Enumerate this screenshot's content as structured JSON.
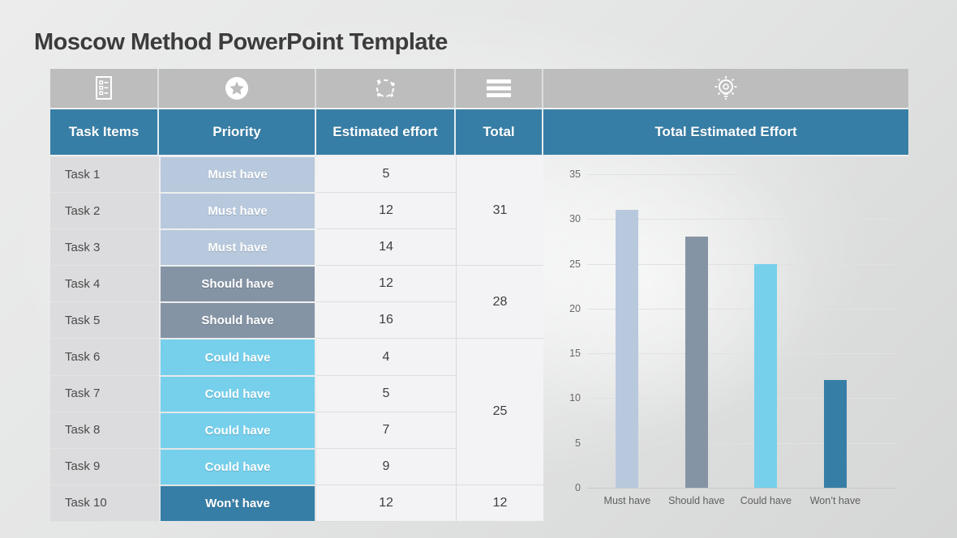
{
  "slide": {
    "title": "Moscow Method PowerPoint Template"
  },
  "table": {
    "columns": {
      "task": "Task Items",
      "priority": "Priority",
      "effort": "Estimated effort",
      "total": "Total"
    },
    "header_icons": [
      "task-list-icon",
      "star-icon",
      "sync-icon",
      "menu-icon",
      "bulb-icon"
    ],
    "rows": [
      {
        "task": "Task 1",
        "priority": "Must have",
        "effort": "5"
      },
      {
        "task": "Task 2",
        "priority": "Must have",
        "effort": "12"
      },
      {
        "task": "Task 3",
        "priority": "Must have",
        "effort": "14"
      },
      {
        "task": "Task 4",
        "priority": "Should have",
        "effort": "12"
      },
      {
        "task": "Task 5",
        "priority": "Should have",
        "effort": "16"
      },
      {
        "task": "Task 6",
        "priority": "Could have",
        "effort": "4"
      },
      {
        "task": "Task 7",
        "priority": "Could have",
        "effort": "5"
      },
      {
        "task": "Task 8",
        "priority": "Could have",
        "effort": "7"
      },
      {
        "task": "Task 9",
        "priority": "Could have",
        "effort": "9"
      },
      {
        "task": "Task 10",
        "priority": "Won’t have",
        "effort": "12"
      }
    ],
    "totals": [
      {
        "value": "31",
        "start_row": 1,
        "span": 3
      },
      {
        "value": "28",
        "start_row": 4,
        "span": 2
      },
      {
        "value": "25",
        "start_row": 6,
        "span": 4
      },
      {
        "value": "12",
        "start_row": 10,
        "span": 1
      }
    ]
  },
  "priority_colors": {
    "Must have": "#b8c9dd",
    "Should have": "#8594a5",
    "Could have": "#76d0ec",
    "Won’t have": "#377ea6"
  },
  "colors": {
    "header_teal": "#377ea6",
    "icon_row_gray": "#bdbdbd"
  },
  "chart": {
    "header": "Total Estimated Effort"
  },
  "chart_data": {
    "type": "bar",
    "title": "Total Estimated Effort",
    "categories": [
      "Must have",
      "Should have",
      "Could have",
      "Won’t have"
    ],
    "values": [
      31,
      28,
      25,
      12
    ],
    "colors": [
      "#b8c9dd",
      "#8594a5",
      "#76d0ec",
      "#377ea6"
    ],
    "ylim": [
      0,
      35
    ],
    "yticks": [
      0,
      5,
      10,
      15,
      20,
      25,
      30,
      35
    ],
    "grid": true,
    "legend": "none",
    "xlabel": "",
    "ylabel": ""
  }
}
